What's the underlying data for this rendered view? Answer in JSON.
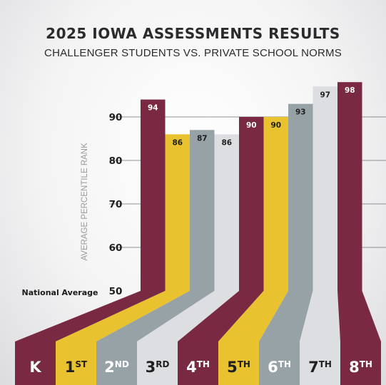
{
  "chart_data": {
    "type": "bar",
    "title": "2025 IOWA ASSESSMENTS RESULTS",
    "subtitle": "CHALLENGER STUDENTS VS. PRIVATE SCHOOL NORMS",
    "ylabel": "AVERAGE PERCENTILE RANK",
    "baseline_label": "National Average",
    "ylim": [
      50,
      100
    ],
    "yticks": [
      50,
      60,
      70,
      80,
      90
    ],
    "categories": [
      {
        "main": "K",
        "suffix": ""
      },
      {
        "main": "1",
        "suffix": "ST"
      },
      {
        "main": "2",
        "suffix": "ND"
      },
      {
        "main": "3",
        "suffix": "RD"
      },
      {
        "main": "4",
        "suffix": "TH"
      },
      {
        "main": "5",
        "suffix": "TH"
      },
      {
        "main": "6",
        "suffix": "TH"
      },
      {
        "main": "7",
        "suffix": "TH"
      },
      {
        "main": "8",
        "suffix": "TH"
      }
    ],
    "values": [
      94,
      86,
      87,
      86,
      90,
      90,
      93,
      97,
      98
    ],
    "colors": [
      "#7a2942",
      "#e9c22f",
      "#97a2a6",
      "#dcdee2",
      "#7a2942",
      "#e9c22f",
      "#97a2a6",
      "#dcdee2",
      "#7a2942"
    ],
    "grid": true
  }
}
